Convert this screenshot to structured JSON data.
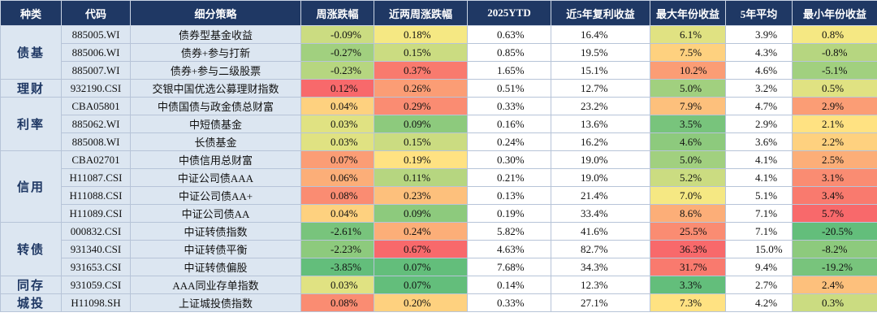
{
  "table": {
    "header": [
      "种类",
      "代码",
      "细分策略",
      "周涨跌幅",
      "近两周涨跌幅",
      "2025YTD",
      "近5年复利收益",
      "最大年份收益",
      "5年平均",
      "最小年份收益"
    ],
    "groups": [
      {
        "name": "债基",
        "rows": [
          [
            "885005.WI",
            "债券型基金收益",
            "-0.09%",
            "0.18%",
            "0.63%",
            "16.4%",
            "6.1%",
            "3.9%",
            "0.8%"
          ],
          [
            "885006.WI",
            "债券+参与打新",
            "-0.27%",
            "0.15%",
            "0.85%",
            "19.5%",
            "7.5%",
            "4.3%",
            "-0.8%"
          ],
          [
            "885007.WI",
            "债券+参与二级股票",
            "-0.23%",
            "0.37%",
            "1.65%",
            "15.1%",
            "10.2%",
            "4.6%",
            "-5.1%"
          ]
        ]
      },
      {
        "name": "理财",
        "rows": [
          [
            "932190.CSI",
            "交银中国优选公募理财指数",
            "0.12%",
            "0.26%",
            "0.51%",
            "12.7%",
            "5.0%",
            "3.2%",
            "0.5%"
          ]
        ]
      },
      {
        "name": "利率",
        "rows": [
          [
            "CBA05801",
            "中债国债与政金债总财富",
            "0.04%",
            "0.29%",
            "0.33%",
            "23.2%",
            "7.9%",
            "4.7%",
            "2.9%"
          ],
          [
            "885062.WI",
            "中短债基金",
            "0.03%",
            "0.09%",
            "0.16%",
            "13.6%",
            "3.5%",
            "2.9%",
            "2.1%"
          ],
          [
            "885008.WI",
            "长债基金",
            "0.03%",
            "0.15%",
            "0.24%",
            "16.2%",
            "4.6%",
            "3.6%",
            "2.2%"
          ]
        ]
      },
      {
        "name": "信用",
        "rows": [
          [
            "CBA02701",
            "中债信用总财富",
            "0.07%",
            "0.19%",
            "0.30%",
            "19.0%",
            "5.0%",
            "4.1%",
            "2.5%"
          ],
          [
            "H11087.CSI",
            "中证公司债AAA",
            "0.06%",
            "0.11%",
            "0.21%",
            "19.0%",
            "5.2%",
            "4.1%",
            "3.1%"
          ],
          [
            "H11088.CSI",
            "中证公司债AA+",
            "0.08%",
            "0.23%",
            "0.13%",
            "21.4%",
            "7.0%",
            "5.1%",
            "3.4%"
          ],
          [
            "H11089.CSI",
            "中证公司债AA",
            "0.04%",
            "0.09%",
            "0.19%",
            "33.4%",
            "8.6%",
            "7.1%",
            "5.7%"
          ]
        ]
      },
      {
        "name": "转债",
        "rows": [
          [
            "000832.CSI",
            "中证转债指数",
            "-2.61%",
            "0.24%",
            "5.82%",
            "41.6%",
            "25.5%",
            "7.1%",
            "-20.5%"
          ],
          [
            "931340.CSI",
            "中证转债平衡",
            "-2.23%",
            "0.67%",
            "4.63%",
            "82.7%",
            "36.3%",
            "15.0%",
            "-8.2%"
          ],
          [
            "931653.CSI",
            "中证转债偏股",
            "-3.85%",
            "0.07%",
            "7.68%",
            "34.3%",
            "31.7%",
            "9.4%",
            "-19.2%"
          ]
        ]
      },
      {
        "name": "同存",
        "rows": [
          [
            "931059.CSI",
            "AAA同业存单指数",
            "0.03%",
            "0.07%",
            "0.14%",
            "12.3%",
            "3.3%",
            "2.7%",
            "2.4%"
          ]
        ]
      },
      {
        "name": "城投",
        "rows": [
          [
            "H11098.SH",
            "上证城投债指数",
            "0.08%",
            "0.20%",
            "0.33%",
            "27.1%",
            "7.3%",
            "4.2%",
            "0.3%"
          ]
        ]
      }
    ]
  }
}
